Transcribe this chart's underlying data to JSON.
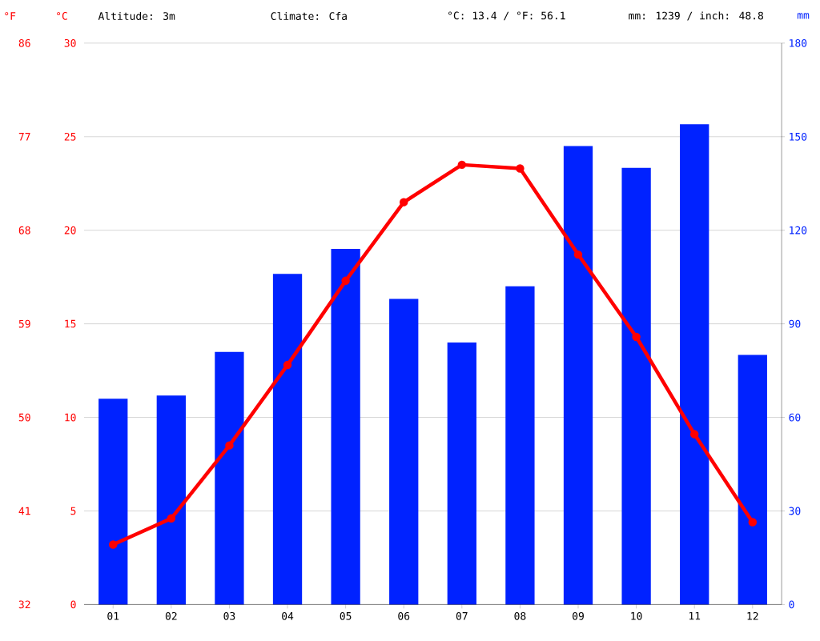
{
  "chart_data": {
    "type": "bar",
    "annotations": [
      "Altitude: 3m",
      "Climate: Cfa",
      "°C: 13.4 / °F: 56.1",
      "mm: 1239 / inch: 48.8"
    ],
    "ylabel": "°C",
    "y2label": "mm",
    "y3label": "°F",
    "categories": [
      "01",
      "02",
      "03",
      "04",
      "05",
      "06",
      "07",
      "08",
      "09",
      "10",
      "11",
      "12"
    ],
    "series": [
      {
        "axis": "y2",
        "color": "#0022ff",
        "values": [
          66,
          67,
          81,
          106,
          114,
          98,
          84,
          102,
          147,
          140,
          154,
          80
        ]
      },
      {
        "type": "line",
        "axis": "y",
        "color": "#ff0000",
        "marker": "circle",
        "values": [
          3.2,
          4.6,
          8.5,
          12.8,
          17.3,
          21.5,
          23.5,
          23.3,
          18.7,
          14.3,
          9.1,
          4.4
        ]
      }
    ],
    "ylim": [
      0,
      30
    ],
    "yticks": [
      0,
      5,
      10,
      15,
      20,
      25,
      30
    ],
    "y2lim": [
      0,
      180
    ],
    "y2ticks": [
      0,
      30,
      60,
      90,
      120,
      150,
      180
    ],
    "y3lim": [
      32,
      86
    ],
    "y3ticks": [
      32,
      41,
      50,
      59,
      68,
      77,
      86
    ],
    "grid": "y"
  }
}
